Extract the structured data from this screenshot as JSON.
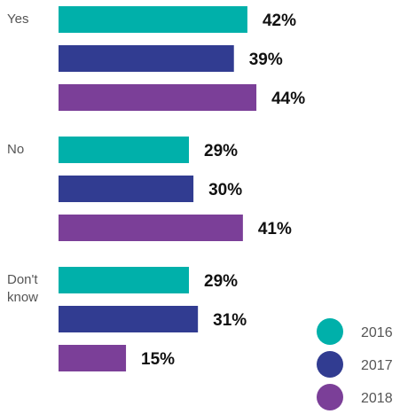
{
  "chart_data": {
    "type": "bar",
    "orientation": "horizontal",
    "categories": [
      {
        "label_lines": [
          "Yes"
        ]
      },
      {
        "label_lines": [
          "No"
        ]
      },
      {
        "label_lines": [
          "Don't",
          "know"
        ]
      }
    ],
    "series": [
      {
        "name": "2016",
        "color": "#00B0AA",
        "values": [
          42,
          29,
          29
        ]
      },
      {
        "name": "2017",
        "color": "#313C91",
        "values": [
          39,
          30,
          31
        ]
      },
      {
        "name": "2018",
        "color": "#7B3F98",
        "values": [
          44,
          41,
          15
        ]
      }
    ],
    "value_suffix": "%",
    "xlim": [
      0,
      100
    ],
    "grid": false,
    "legend_position": "bottom-right"
  }
}
